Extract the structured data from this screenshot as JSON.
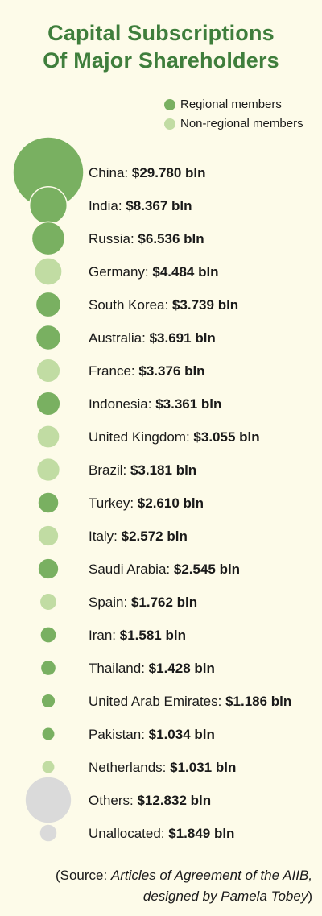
{
  "title_lines": [
    "Capital Subscriptions",
    "Of Major Shareholders"
  ],
  "legend": [
    {
      "label": "Regional members",
      "color": "#79b061"
    },
    {
      "label": "Non-regional members",
      "color": "#c1dca3"
    }
  ],
  "colors": {
    "regional": "#79b061",
    "non_regional": "#c1dca3",
    "other": "#dadada",
    "title": "#3f7e3c"
  },
  "chart_data": {
    "type": "bubble",
    "unit": "bln",
    "items": [
      {
        "name": "China",
        "value": 29.78,
        "value_text": "$29.780 bln",
        "group": "regional"
      },
      {
        "name": "India",
        "value": 8.367,
        "value_text": "$8.367 bln",
        "group": "regional"
      },
      {
        "name": "Russia",
        "value": 6.536,
        "value_text": "$6.536 bln",
        "group": "regional"
      },
      {
        "name": "Germany",
        "value": 4.484,
        "value_text": "$4.484 bln",
        "group": "non_regional"
      },
      {
        "name": "South Korea",
        "value": 3.739,
        "value_text": "$3.739 bln",
        "group": "regional"
      },
      {
        "name": "Australia",
        "value": 3.691,
        "value_text": "$3.691 bln",
        "group": "regional"
      },
      {
        "name": "France",
        "value": 3.376,
        "value_text": "$3.376 bln",
        "group": "non_regional"
      },
      {
        "name": "Indonesia",
        "value": 3.361,
        "value_text": "$3.361 bln",
        "group": "regional"
      },
      {
        "name": "United Kingdom",
        "value": 3.055,
        "value_text": "$3.055 bln",
        "group": "non_regional"
      },
      {
        "name": "Brazil",
        "value": 3.181,
        "value_text": "$3.181 bln",
        "group": "non_regional"
      },
      {
        "name": "Turkey",
        "value": 2.61,
        "value_text": "$2.610 bln",
        "group": "regional"
      },
      {
        "name": "Italy",
        "value": 2.572,
        "value_text": "$2.572 bln",
        "group": "non_regional"
      },
      {
        "name": "Saudi Arabia",
        "value": 2.545,
        "value_text": "$2.545 bln",
        "group": "regional"
      },
      {
        "name": "Spain",
        "value": 1.762,
        "value_text": "$1.762 bln",
        "group": "non_regional"
      },
      {
        "name": "Iran",
        "value": 1.581,
        "value_text": "$1.581 bln",
        "group": "regional"
      },
      {
        "name": "Thailand",
        "value": 1.428,
        "value_text": "$1.428 bln",
        "group": "regional"
      },
      {
        "name": "United Arab Emirates",
        "value": 1.186,
        "value_text": "$1.186 bln",
        "group": "regional"
      },
      {
        "name": "Pakistan",
        "value": 1.034,
        "value_text": "$1.034 bln",
        "group": "regional"
      },
      {
        "name": "Netherlands",
        "value": 1.031,
        "value_text": "$1.031 bln",
        "group": "non_regional"
      },
      {
        "name": "Others",
        "value": 12.832,
        "value_text": "$12.832 bln",
        "group": "other"
      },
      {
        "name": "Unallocated",
        "value": 1.849,
        "value_text": "$1.849 bln",
        "group": "other"
      }
    ]
  },
  "source": {
    "prefix": "(Source: ",
    "italic_line1": "Articles of Agreement of the AIIB,",
    "italic_line2": "designed by Pamela Tobey",
    "suffix": ")"
  }
}
